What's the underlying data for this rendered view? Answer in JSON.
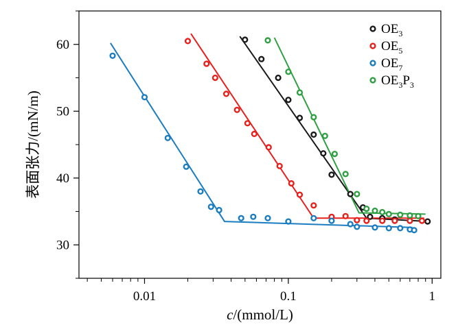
{
  "chart_data": {
    "type": "scatter",
    "title": "",
    "xlabel_italic": "c",
    "xlabel_rest": "/(mmol/L)",
    "ylabel": "表面张力/(mN/m)",
    "xscale": "log",
    "xlim": [
      0.0035,
      1.15
    ],
    "ylim": [
      25,
      65
    ],
    "grid": false,
    "legend_position": "top-right",
    "x_ticks": [
      {
        "value": 0.01,
        "label": "0.01"
      },
      {
        "value": 0.1,
        "label": "0.1"
      },
      {
        "value": 1,
        "label": "1"
      }
    ],
    "y_ticks": [
      {
        "value": 30,
        "label": "30"
      },
      {
        "value": 40,
        "label": "40"
      },
      {
        "value": 50,
        "label": "50"
      },
      {
        "value": 60,
        "label": "60"
      }
    ],
    "series": [
      {
        "name": "OE3",
        "name_main": "OE",
        "name_sub": "3",
        "name_tail": "",
        "name_tail_sub": "",
        "color": "#1a1a1a",
        "points": [
          [
            0.05,
            60.7
          ],
          [
            0.065,
            57.8
          ],
          [
            0.085,
            55.0
          ],
          [
            0.1,
            51.7
          ],
          [
            0.12,
            49.0
          ],
          [
            0.15,
            46.5
          ],
          [
            0.175,
            43.7
          ],
          [
            0.2,
            40.5
          ],
          [
            0.27,
            37.6
          ],
          [
            0.33,
            35.6
          ],
          [
            0.37,
            34.2
          ],
          [
            0.45,
            34.0
          ],
          [
            0.55,
            33.8
          ],
          [
            0.93,
            33.5
          ]
        ],
        "fit": [
          [
            0.046,
            61.2
          ],
          [
            0.35,
            34.0
          ],
          [
            0.95,
            33.5
          ]
        ]
      },
      {
        "name": "OE5",
        "name_main": "OE",
        "name_sub": "5",
        "name_tail": "",
        "name_tail_sub": "",
        "color": "#e8201c",
        "points": [
          [
            0.02,
            60.5
          ],
          [
            0.027,
            57.1
          ],
          [
            0.031,
            55.0
          ],
          [
            0.037,
            52.6
          ],
          [
            0.044,
            50.2
          ],
          [
            0.052,
            48.2
          ],
          [
            0.058,
            46.6
          ],
          [
            0.073,
            44.6
          ],
          [
            0.087,
            41.8
          ],
          [
            0.105,
            39.2
          ],
          [
            0.12,
            37.5
          ],
          [
            0.15,
            35.9
          ],
          [
            0.2,
            34.2
          ],
          [
            0.25,
            34.3
          ],
          [
            0.3,
            33.7
          ],
          [
            0.35,
            33.6
          ],
          [
            0.45,
            33.6
          ],
          [
            0.55,
            33.6
          ],
          [
            0.7,
            33.6
          ],
          [
            0.85,
            33.6
          ]
        ],
        "fit": [
          [
            0.021,
            61.6
          ],
          [
            0.15,
            34.0
          ],
          [
            0.88,
            34.0
          ]
        ]
      },
      {
        "name": "OE7",
        "name_main": "OE",
        "name_sub": "7",
        "name_tail": "",
        "name_tail_sub": "",
        "color": "#1a7cc1",
        "points": [
          [
            0.006,
            58.3
          ],
          [
            0.01,
            52.1
          ],
          [
            0.0145,
            46.0
          ],
          [
            0.0195,
            41.7
          ],
          [
            0.0245,
            38.0
          ],
          [
            0.029,
            35.7
          ],
          [
            0.033,
            35.2
          ],
          [
            0.047,
            34.0
          ],
          [
            0.057,
            34.2
          ],
          [
            0.072,
            34.0
          ],
          [
            0.1,
            33.5
          ],
          [
            0.15,
            34.0
          ],
          [
            0.2,
            33.6
          ],
          [
            0.27,
            33.1
          ],
          [
            0.3,
            32.7
          ],
          [
            0.4,
            32.6
          ],
          [
            0.5,
            32.5
          ],
          [
            0.6,
            32.5
          ],
          [
            0.7,
            32.3
          ],
          [
            0.75,
            32.2
          ]
        ],
        "fit": [
          [
            0.0058,
            60.2
          ],
          [
            0.036,
            33.5
          ],
          [
            0.73,
            32.6
          ]
        ]
      },
      {
        "name": "OE3P3",
        "name_main": "OE",
        "name_sub": "3",
        "name_tail": "P",
        "name_tail_sub": "3",
        "color": "#2ea043",
        "points": [
          [
            0.072,
            60.6
          ],
          [
            0.1,
            55.9
          ],
          [
            0.12,
            52.8
          ],
          [
            0.15,
            49.1
          ],
          [
            0.18,
            46.3
          ],
          [
            0.21,
            43.6
          ],
          [
            0.25,
            40.6
          ],
          [
            0.3,
            37.6
          ],
          [
            0.35,
            35.4
          ],
          [
            0.4,
            35.1
          ],
          [
            0.45,
            34.9
          ],
          [
            0.5,
            34.6
          ],
          [
            0.6,
            34.5
          ],
          [
            0.7,
            34.4
          ],
          [
            0.8,
            34.3
          ]
        ],
        "fit": [
          [
            0.08,
            61.0
          ],
          [
            0.31,
            34.8
          ],
          [
            0.9,
            34.6
          ]
        ]
      }
    ]
  }
}
